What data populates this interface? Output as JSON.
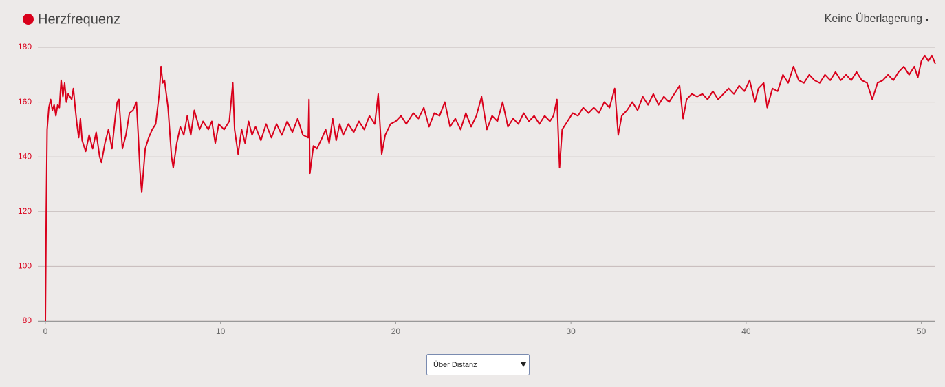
{
  "chart_data": {
    "type": "line",
    "title": "Herzfrequenz",
    "color": "#d9001b",
    "x": [
      0,
      0.05,
      0.1,
      0.2,
      0.3,
      0.4,
      0.5,
      0.6,
      0.7,
      0.8,
      0.9,
      1.0,
      1.1,
      1.2,
      1.3,
      1.5,
      1.6,
      1.7,
      1.8,
      1.9,
      2.0,
      2.1,
      2.3,
      2.5,
      2.7,
      2.9,
      3.1,
      3.2,
      3.4,
      3.6,
      3.8,
      4.0,
      4.1,
      4.2,
      4.4,
      4.6,
      4.8,
      5.0,
      5.2,
      5.3,
      5.4,
      5.5,
      5.7,
      5.9,
      6.1,
      6.3,
      6.5,
      6.6,
      6.7,
      6.8,
      7.0,
      7.2,
      7.3,
      7.5,
      7.7,
      7.9,
      8.1,
      8.3,
      8.5,
      8.8,
      9.0,
      9.3,
      9.5,
      9.7,
      9.9,
      10.2,
      10.5,
      10.7,
      10.8,
      11.0,
      11.2,
      11.4,
      11.6,
      11.8,
      12.0,
      12.3,
      12.6,
      12.9,
      13.2,
      13.5,
      13.8,
      14.1,
      14.4,
      14.7,
      15.0,
      15.05,
      15.1,
      15.3,
      15.5,
      15.8,
      16.0,
      16.2,
      16.4,
      16.6,
      16.8,
      17.0,
      17.3,
      17.6,
      17.9,
      18.2,
      18.5,
      18.8,
      19.0,
      19.2,
      19.4,
      19.7,
      20.0,
      20.3,
      20.6,
      21.0,
      21.3,
      21.6,
      21.9,
      22.2,
      22.5,
      22.8,
      23.1,
      23.4,
      23.7,
      24.0,
      24.3,
      24.6,
      24.9,
      25.2,
      25.5,
      25.8,
      26.1,
      26.4,
      26.7,
      27.0,
      27.3,
      27.6,
      27.9,
      28.2,
      28.5,
      28.8,
      29.0,
      29.2,
      29.35,
      29.5,
      29.8,
      30.1,
      30.4,
      30.7,
      31.0,
      31.3,
      31.6,
      31.9,
      32.2,
      32.5,
      32.7,
      32.9,
      33.2,
      33.5,
      33.8,
      34.1,
      34.4,
      34.7,
      35.0,
      35.3,
      35.6,
      35.9,
      36.2,
      36.4,
      36.6,
      36.9,
      37.2,
      37.5,
      37.8,
      38.1,
      38.4,
      38.7,
      39.0,
      39.3,
      39.6,
      39.9,
      40.2,
      40.5,
      40.7,
      41.0,
      41.2,
      41.5,
      41.8,
      42.1,
      42.4,
      42.7,
      43.0,
      43.3,
      43.6,
      43.9,
      44.2,
      44.5,
      44.8,
      45.1,
      45.4,
      45.7,
      46.0,
      46.3,
      46.6,
      46.9,
      47.2,
      47.5,
      47.8,
      48.1,
      48.4,
      48.7,
      49.0,
      49.3,
      49.6,
      49.8,
      50.0,
      50.2,
      50.4,
      50.6,
      50.8
    ],
    "values": [
      80,
      120,
      150,
      158,
      161,
      157,
      159,
      155,
      159,
      158,
      168,
      162,
      167,
      160,
      163,
      161,
      165,
      158,
      152,
      147,
      154,
      146,
      142,
      148,
      143,
      149,
      140,
      138,
      145,
      150,
      143,
      155,
      160,
      161,
      143,
      148,
      156,
      157,
      160,
      148,
      135,
      127,
      143,
      147,
      150,
      152,
      163,
      173,
      167,
      168,
      158,
      140,
      136,
      145,
      151,
      148,
      155,
      148,
      157,
      150,
      153,
      150,
      153,
      145,
      152,
      150,
      153,
      167,
      150,
      141,
      150,
      145,
      153,
      148,
      151,
      146,
      152,
      147,
      152,
      148,
      153,
      149,
      154,
      148,
      147,
      161,
      134,
      144,
      143,
      147,
      150,
      145,
      154,
      146,
      152,
      148,
      152,
      149,
      153,
      150,
      155,
      152,
      163,
      141,
      148,
      152,
      153,
      155,
      152,
      156,
      154,
      158,
      151,
      156,
      155,
      160,
      151,
      154,
      150,
      156,
      151,
      155,
      162,
      150,
      155,
      153,
      160,
      151,
      154,
      152,
      156,
      153,
      155,
      152,
      155,
      153,
      155,
      161,
      136,
      150,
      153,
      156,
      155,
      158,
      156,
      158,
      156,
      160,
      158,
      165,
      148,
      155,
      157,
      160,
      157,
      162,
      159,
      163,
      159,
      162,
      160,
      163,
      166,
      154,
      161,
      163,
      162,
      163,
      161,
      164,
      161,
      163,
      165,
      163,
      166,
      164,
      168,
      160,
      165,
      167,
      158,
      165,
      164,
      170,
      167,
      173,
      168,
      167,
      170,
      168,
      167,
      170,
      168,
      171,
      168,
      170,
      168,
      171,
      168,
      167,
      161,
      167,
      168,
      170,
      168,
      171,
      173,
      170,
      173,
      169,
      175,
      177,
      175,
      177,
      174
    ],
    "xlim": [
      -0.43,
      50.8
    ],
    "xticks": [
      0,
      10,
      20,
      30,
      40,
      50
    ],
    "ylim": [
      80,
      180
    ],
    "yticks": [
      80,
      100,
      120,
      140,
      160,
      180
    ],
    "grid": true
  },
  "header": {
    "overlay": "Keine Überlagerung"
  },
  "controls": {
    "select": "Über Distanz"
  }
}
